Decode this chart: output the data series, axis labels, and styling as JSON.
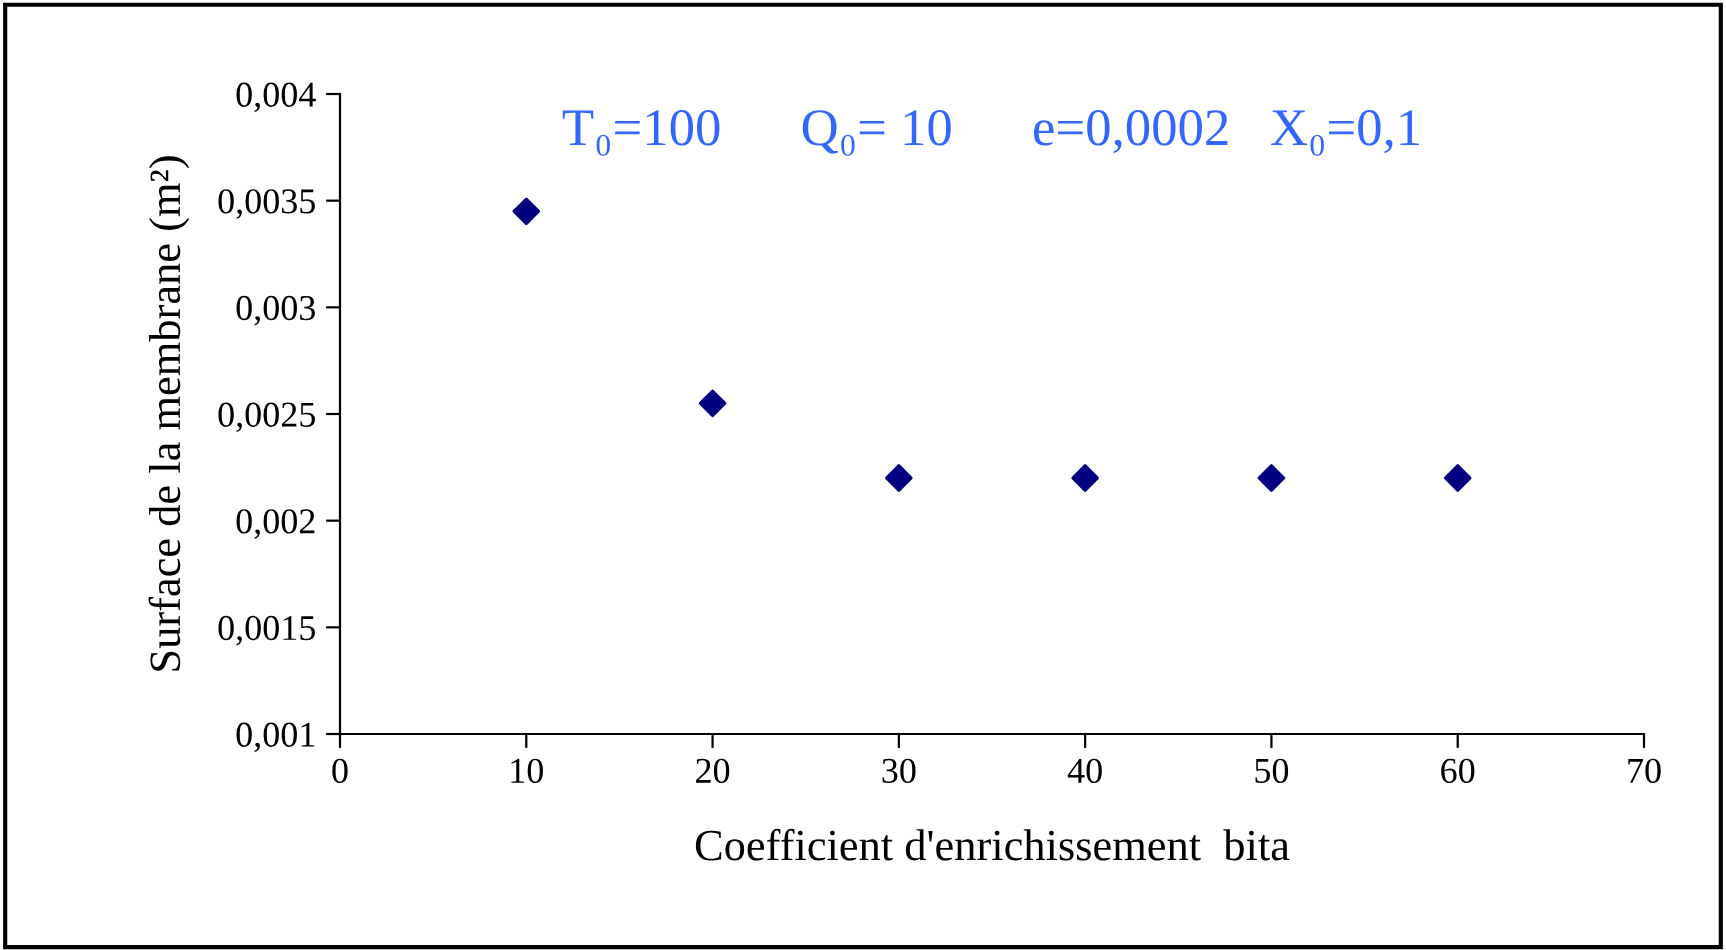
{
  "chart_data": {
    "type": "scatter",
    "xlabel": "Coefficient d'enrichissement  bita",
    "ylabel": "Surface de la membrane (m²)",
    "annotations": [
      "T₀=100      Q₀= 10      e=0,0002   X₀=0,1"
    ],
    "x": [
      10,
      20,
      30,
      40,
      50,
      60
    ],
    "series": [
      {
        "color": "#000080",
        "values": [
          0.00345,
          0.00255,
          0.0022,
          0.0022,
          0.0022,
          0.0022
        ]
      }
    ],
    "marker": "diamond",
    "grid": false,
    "legend": false,
    "xlim": [
      0,
      70
    ],
    "xticks": [
      0,
      10,
      20,
      30,
      40,
      50,
      60,
      70
    ],
    "ylim": [
      0.001,
      0.004
    ],
    "yticks": [
      {
        "value": 0.001,
        "label": "0,001"
      },
      {
        "value": 0.0015,
        "label": "0,0015"
      },
      {
        "value": 0.002,
        "label": "0,002"
      },
      {
        "value": 0.0025,
        "label": "0,0025"
      },
      {
        "value": 0.003,
        "label": "0,003"
      },
      {
        "value": 0.0035,
        "label": "0,0035"
      },
      {
        "value": 0.004,
        "label": "0,004"
      }
    ]
  }
}
